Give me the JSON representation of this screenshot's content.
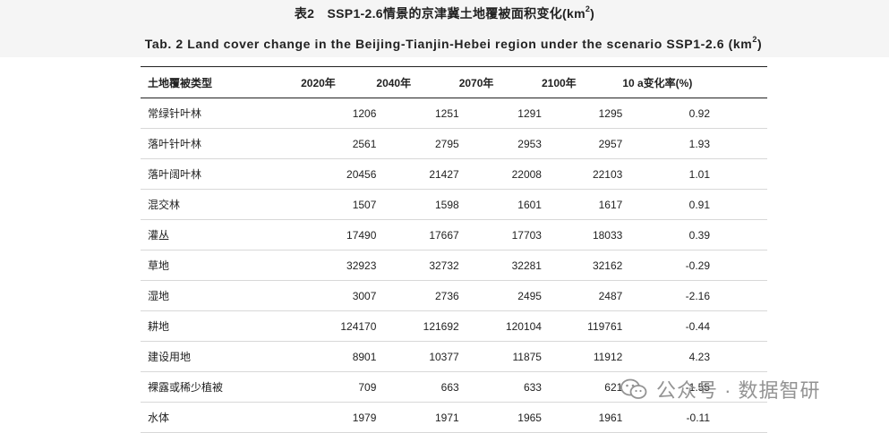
{
  "title_cn_prefix": "表2　SSP1-2.6情景的京津冀土地覆被面积变化(km",
  "title_cn_sup": "2",
  "title_cn_suffix": ")",
  "title_en_prefix": "Tab. 2  Land cover change in the Beijing-Tianjin-Hebei region under the scenario SSP1-2.6 (km",
  "title_en_sup": "2",
  "title_en_suffix": ")",
  "table": {
    "headers": [
      "土地覆被类型",
      "2020年",
      "2040年",
      "2070年",
      "2100年",
      "10 a变化率(%)"
    ],
    "rows": [
      [
        "常绿针叶林",
        "1206",
        "1251",
        "1291",
        "1295",
        "0.92"
      ],
      [
        "落叶针叶林",
        "2561",
        "2795",
        "2953",
        "2957",
        "1.93"
      ],
      [
        "落叶阔叶林",
        "20456",
        "21427",
        "22008",
        "22103",
        "1.01"
      ],
      [
        "混交林",
        "1507",
        "1598",
        "1601",
        "1617",
        "0.91"
      ],
      [
        "灌丛",
        "17490",
        "17667",
        "17703",
        "18033",
        "0.39"
      ],
      [
        "草地",
        "32923",
        "32732",
        "32281",
        "32162",
        "-0.29"
      ],
      [
        "湿地",
        "3007",
        "2736",
        "2495",
        "2487",
        "-2.16"
      ],
      [
        "耕地",
        "124170",
        "121692",
        "120104",
        "119761",
        "-0.44"
      ],
      [
        "建设用地",
        "8901",
        "10377",
        "11875",
        "11912",
        "4.23"
      ],
      [
        "裸露或稀少植被",
        "709",
        "663",
        "633",
        "621",
        "-1.55"
      ],
      [
        "水体",
        "1979",
        "1971",
        "1965",
        "1961",
        "-0.11"
      ]
    ]
  },
  "watermark": {
    "text": "公众号 · 数据智研",
    "icon": "wechat-icon"
  }
}
